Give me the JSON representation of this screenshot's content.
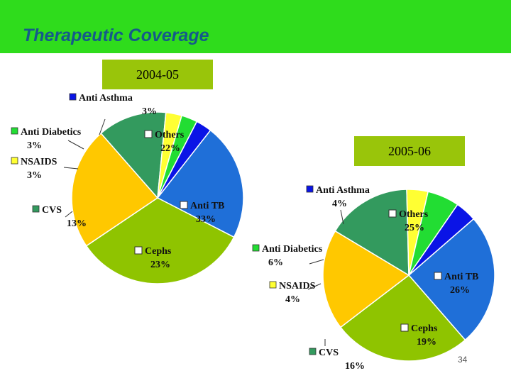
{
  "slide": {
    "title": "Therapeutic Coverage",
    "page_number": "34"
  },
  "chart_data": [
    {
      "type": "pie",
      "title": "2004-05",
      "slices": [
        {
          "label": "Others",
          "value": 22,
          "pct": "22%",
          "color": "#1f6fd8"
        },
        {
          "label": "Anti TB",
          "value": 33,
          "pct": "33%",
          "color": "#8fc400"
        },
        {
          "label": "Cephs",
          "value": 23,
          "pct": "23%",
          "color": "#ffc800"
        },
        {
          "label": "CVS",
          "value": 13,
          "pct": "13%",
          "color": "#339a5e"
        },
        {
          "label": "NSAIDS",
          "value": 3,
          "pct": "3%",
          "color": "#ffff33"
        },
        {
          "label": "Anti Diabetics",
          "value": 3,
          "pct": "3%",
          "color": "#22dd33"
        },
        {
          "label": "Anti Asthma",
          "value": 3,
          "pct": "3%",
          "color": "#0a14e6"
        }
      ]
    },
    {
      "type": "pie",
      "title": "2005-06",
      "slices": [
        {
          "label": "Others",
          "value": 25,
          "pct": "25%",
          "color": "#1f6fd8"
        },
        {
          "label": "Anti TB",
          "value": 26,
          "pct": "26%",
          "color": "#8fc400"
        },
        {
          "label": "Cephs",
          "value": 19,
          "pct": "19%",
          "color": "#ffc800"
        },
        {
          "label": "CVS",
          "value": 16,
          "pct": "16%",
          "color": "#339a5e"
        },
        {
          "label": "NSAIDS",
          "value": 4,
          "pct": "4%",
          "color": "#ffff33"
        },
        {
          "label": "Anti Diabetics",
          "value": 6,
          "pct": "6%",
          "color": "#22dd33"
        },
        {
          "label": "Anti Asthma",
          "value": 4,
          "pct": "4%",
          "color": "#0a14e6"
        }
      ]
    }
  ]
}
